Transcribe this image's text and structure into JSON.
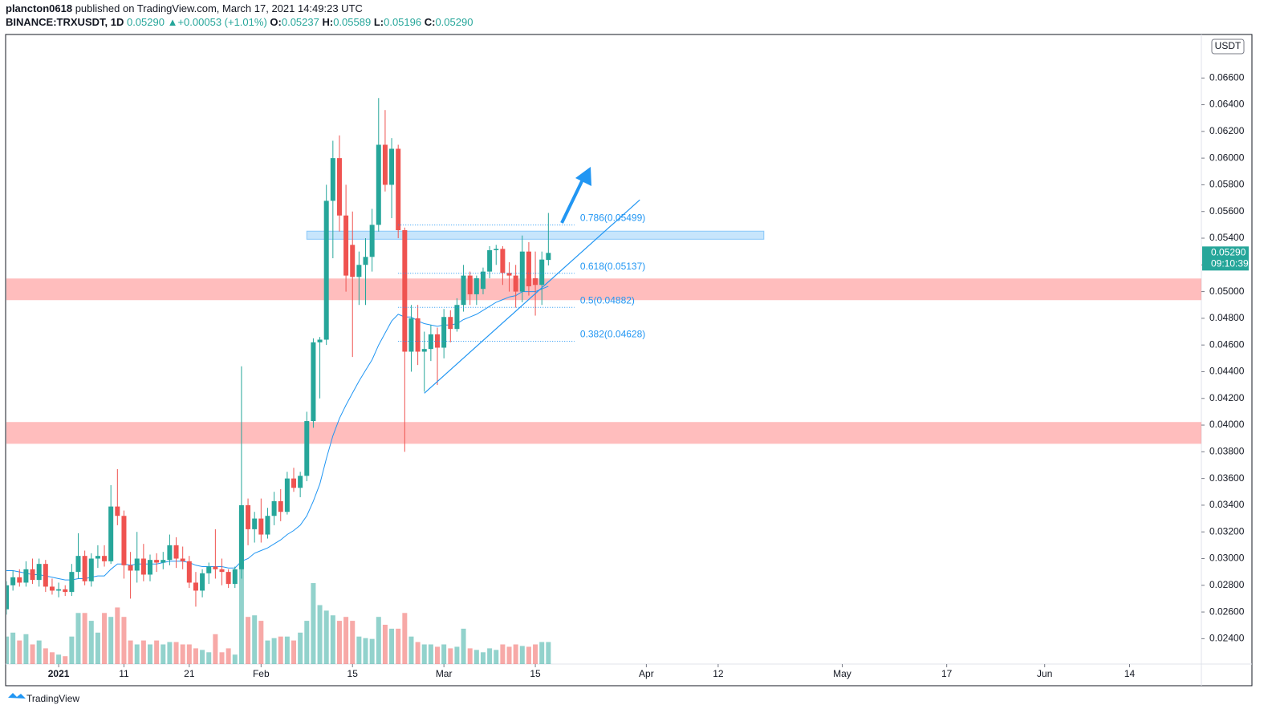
{
  "header": {
    "author": "plancton0618",
    "published": " published on TradingView.com, March 17, 2021 14:49:23 UTC",
    "symbol": "BINANCE:TRXUSDT, 1D",
    "price": "0.05290",
    "change": "▲+0.00053 (+1.01%)",
    "o_label": "O:",
    "o": "0.05237",
    "h_label": "H:",
    "h": "0.05589",
    "l_label": "L:",
    "l": "0.05196",
    "c_label": "C:",
    "c": "0.05290",
    "currency": "USDT",
    "price_tag": "0.05290",
    "countdown": "09:10:39",
    "brand": "TradingView"
  },
  "chart_data": {
    "type": "candlestick",
    "x": [
      "2020-12-24",
      "2020-12-25",
      "2020-12-26",
      "2020-12-27",
      "2020-12-28",
      "2020-12-29",
      "2020-12-30",
      "2020-12-31",
      "2021-01-01",
      "2021-01-02",
      "2021-01-03",
      "2021-01-04",
      "2021-01-05",
      "2021-01-06",
      "2021-01-07",
      "2021-01-08",
      "2021-01-09",
      "2021-01-10",
      "2021-01-11",
      "2021-01-12",
      "2021-01-13",
      "2021-01-14",
      "2021-01-15",
      "2021-01-16",
      "2021-01-17",
      "2021-01-18",
      "2021-01-19",
      "2021-01-20",
      "2021-01-21",
      "2021-01-22",
      "2021-01-23",
      "2021-01-24",
      "2021-01-25",
      "2021-01-26",
      "2021-01-27",
      "2021-01-28",
      "2021-01-29",
      "2021-01-30",
      "2021-01-31",
      "2021-02-01",
      "2021-02-02",
      "2021-02-03",
      "2021-02-04",
      "2021-02-05",
      "2021-02-06",
      "2021-02-07",
      "2021-02-08",
      "2021-02-09",
      "2021-02-10",
      "2021-02-11",
      "2021-02-12",
      "2021-02-13",
      "2021-02-14",
      "2021-02-15",
      "2021-02-16",
      "2021-02-17",
      "2021-02-18",
      "2021-02-19",
      "2021-02-20",
      "2021-02-21",
      "2021-02-22",
      "2021-02-23",
      "2021-02-24",
      "2021-02-25",
      "2021-02-26",
      "2021-02-27",
      "2021-02-28",
      "2021-03-01",
      "2021-03-02",
      "2021-03-03",
      "2021-03-04",
      "2021-03-05",
      "2021-03-06",
      "2021-03-07",
      "2021-03-08",
      "2021-03-09",
      "2021-03-10",
      "2021-03-11",
      "2021-03-12",
      "2021-03-13",
      "2021-03-14",
      "2021-03-15",
      "2021-03-16",
      "2021-03-17"
    ],
    "open": [
      0.0262,
      0.028,
      0.0286,
      0.0282,
      0.0292,
      0.0284,
      0.0296,
      0.0279,
      0.0276,
      0.0277,
      0.0275,
      0.029,
      0.0302,
      0.0283,
      0.03,
      0.0302,
      0.0298,
      0.0339,
      0.0332,
      0.0295,
      0.0291,
      0.03,
      0.0288,
      0.0299,
      0.0297,
      0.0299,
      0.031,
      0.03,
      0.0298,
      0.0282,
      0.0276,
      0.0289,
      0.0294,
      0.0292,
      0.029,
      0.0281,
      0.0292,
      0.034,
      0.0322,
      0.033,
      0.0318,
      0.0332,
      0.0343,
      0.0335,
      0.036,
      0.0353,
      0.0362,
      0.0403,
      0.0462,
      0.0464,
      0.0568,
      0.06,
      0.0557,
      0.0535,
      0.0511,
      0.052,
      0.0526,
      0.055,
      0.061,
      0.058,
      0.0607,
      0.0546,
      0.0455,
      0.048,
      0.0455,
      0.0457,
      0.0468,
      0.0458,
      0.0481,
      0.0472,
      0.049,
      0.0512,
      0.0498,
      0.0502,
      0.0515,
      0.0531,
      0.0532,
      0.0514,
      0.0512,
      0.05,
      0.053,
      0.051,
      0.0505,
      0.05237
    ],
    "high": [
      0.0283,
      0.0291,
      0.0292,
      0.0298,
      0.03,
      0.03,
      0.0299,
      0.0285,
      0.0282,
      0.028,
      0.0296,
      0.0319,
      0.0306,
      0.0304,
      0.031,
      0.031,
      0.0355,
      0.0367,
      0.0336,
      0.0305,
      0.032,
      0.0311,
      0.0303,
      0.0304,
      0.0305,
      0.0318,
      0.0316,
      0.0309,
      0.0302,
      0.029,
      0.0292,
      0.0297,
      0.0322,
      0.03,
      0.0292,
      0.0294,
      0.0444,
      0.0345,
      0.0335,
      0.0345,
      0.0338,
      0.035,
      0.0352,
      0.0365,
      0.0368,
      0.0365,
      0.041,
      0.0465,
      0.0466,
      0.058,
      0.0613,
      0.0617,
      0.058,
      0.056,
      0.053,
      0.054,
      0.0562,
      0.0645,
      0.0636,
      0.0615,
      0.061,
      0.0548,
      0.049,
      0.049,
      0.047,
      0.0475,
      0.0473,
      0.0487,
      0.0486,
      0.0495,
      0.052,
      0.0515,
      0.0512,
      0.0518,
      0.0534,
      0.0535,
      0.0534,
      0.0522,
      0.052,
      0.0542,
      0.0537,
      0.053,
      0.053,
      0.05589
    ],
    "low": [
      0.0258,
      0.0276,
      0.0279,
      0.0279,
      0.0281,
      0.0279,
      0.0275,
      0.0273,
      0.0271,
      0.0272,
      0.0272,
      0.0285,
      0.028,
      0.0279,
      0.0293,
      0.0294,
      0.0296,
      0.0325,
      0.0285,
      0.027,
      0.0282,
      0.0283,
      0.0283,
      0.029,
      0.0292,
      0.0295,
      0.0293,
      0.0292,
      0.0278,
      0.0264,
      0.0271,
      0.0281,
      0.0285,
      0.028,
      0.0278,
      0.0278,
      0.0285,
      0.031,
      0.0312,
      0.0312,
      0.0315,
      0.0325,
      0.0328,
      0.0333,
      0.035,
      0.0346,
      0.0358,
      0.0398,
      0.042,
      0.046,
      0.0525,
      0.0545,
      0.05,
      0.0451,
      0.049,
      0.049,
      0.0515,
      0.0545,
      0.0575,
      0.0555,
      0.054,
      0.038,
      0.044,
      0.0445,
      0.0425,
      0.0448,
      0.043,
      0.045,
      0.0462,
      0.047,
      0.0485,
      0.049,
      0.049,
      0.0498,
      0.051,
      0.052,
      0.0505,
      0.05,
      0.0488,
      0.0492,
      0.0497,
      0.0482,
      0.049,
      0.05196
    ],
    "close": [
      0.028,
      0.0286,
      0.0282,
      0.0292,
      0.0284,
      0.0296,
      0.0279,
      0.0276,
      0.0277,
      0.0275,
      0.029,
      0.0302,
      0.0283,
      0.03,
      0.0302,
      0.0298,
      0.0339,
      0.0332,
      0.0295,
      0.0291,
      0.03,
      0.0288,
      0.0299,
      0.0297,
      0.0299,
      0.031,
      0.03,
      0.0298,
      0.0282,
      0.0276,
      0.0289,
      0.0294,
      0.0292,
      0.029,
      0.0281,
      0.0292,
      0.034,
      0.0322,
      0.033,
      0.0318,
      0.0332,
      0.0343,
      0.0335,
      0.036,
      0.0353,
      0.0362,
      0.0403,
      0.0462,
      0.0464,
      0.0568,
      0.06,
      0.0557,
      0.0512,
      0.0511,
      0.052,
      0.0526,
      0.055,
      0.061,
      0.058,
      0.0607,
      0.0546,
      0.0455,
      0.048,
      0.0455,
      0.0457,
      0.0468,
      0.0458,
      0.0481,
      0.0472,
      0.049,
      0.0512,
      0.0498,
      0.051,
      0.0515,
      0.0531,
      0.0532,
      0.0514,
      0.0512,
      0.05,
      0.053,
      0.0504,
      0.0505,
      0.0524,
      0.0529
    ],
    "volume": [
      35,
      40,
      30,
      38,
      25,
      30,
      20,
      15,
      12,
      10,
      35,
      65,
      65,
      55,
      40,
      65,
      60,
      72,
      60,
      30,
      25,
      30,
      25,
      30,
      25,
      28,
      28,
      25,
      25,
      20,
      18,
      15,
      38,
      15,
      20,
      12,
      195,
      60,
      62,
      55,
      30,
      33,
      35,
      35,
      30,
      40,
      55,
      103,
      75,
      68,
      62,
      55,
      60,
      55,
      35,
      33,
      32,
      60,
      50,
      45,
      45,
      65,
      35,
      28,
      25,
      25,
      22,
      25,
      20,
      22,
      45,
      20,
      18,
      15,
      20,
      18,
      25,
      22,
      25,
      23,
      22,
      25,
      28,
      28
    ],
    "vlim": [
      0,
      800
    ],
    "ema": [
      0.0291,
      0.0291,
      0.029,
      0.0289,
      0.0288,
      0.0288,
      0.0287,
      0.0286,
      0.0285,
      0.0284,
      0.0284,
      0.0285,
      0.0285,
      0.0286,
      0.0287,
      0.0287,
      0.0292,
      0.0296,
      0.0296,
      0.0295,
      0.0296,
      0.0296,
      0.0296,
      0.0296,
      0.0297,
      0.0298,
      0.0298,
      0.0298,
      0.0297,
      0.0295,
      0.0294,
      0.0294,
      0.0294,
      0.0294,
      0.0293,
      0.0293,
      0.0298,
      0.03,
      0.0304,
      0.0306,
      0.0308,
      0.0311,
      0.0314,
      0.0318,
      0.0321,
      0.0325,
      0.0332,
      0.0343,
      0.0356,
      0.0375,
      0.0392,
      0.0405,
      0.0415,
      0.0424,
      0.0433,
      0.0441,
      0.0449,
      0.046,
      0.0469,
      0.0478,
      0.0483,
      0.0481,
      0.0481,
      0.0478,
      0.0476,
      0.0475,
      0.0474,
      0.0475,
      0.0475,
      0.0476,
      0.0479,
      0.0481,
      0.0483,
      0.0486,
      0.0489,
      0.0492,
      0.0494,
      0.0496,
      0.0497,
      0.05,
      0.05,
      0.05,
      0.0502,
      0.0504
    ],
    "up_color": "#26a69a",
    "down_color": "#ef5350",
    "ema_color": "#2196f3",
    "xlim": [
      "2020-12-24",
      "2021-06-25"
    ],
    "xticks": [
      {
        "value": "2021-01-01",
        "label": "2021"
      },
      {
        "value": "2021-01-11",
        "label": "11"
      },
      {
        "value": "2021-01-21",
        "label": "21"
      },
      {
        "value": "2021-02-01",
        "label": "Feb"
      },
      {
        "value": "2021-02-15",
        "label": "15"
      },
      {
        "value": "2021-03-01",
        "label": "Mar"
      },
      {
        "value": "2021-03-15",
        "label": "15"
      },
      {
        "value": "2021-04-01",
        "label": "Apr"
      },
      {
        "value": "2021-04-12",
        "label": "12"
      },
      {
        "value": "2021-05-01",
        "label": "May"
      },
      {
        "value": "2021-05-17",
        "label": "17"
      },
      {
        "value": "2021-06-01",
        "label": "Jun"
      },
      {
        "value": "2021-06-14",
        "label": "14"
      }
    ],
    "ylim": [
      0.0221,
      0.0692
    ],
    "yticks": [
      {
        "value": 0.024,
        "label": "0.02400"
      },
      {
        "value": 0.026,
        "label": "0.02600"
      },
      {
        "value": 0.028,
        "label": "0.02800"
      },
      {
        "value": 0.03,
        "label": "0.03000"
      },
      {
        "value": 0.032,
        "label": "0.03200"
      },
      {
        "value": 0.034,
        "label": "0.03400"
      },
      {
        "value": 0.036,
        "label": "0.03600"
      },
      {
        "value": 0.038,
        "label": "0.03800"
      },
      {
        "value": 0.04,
        "label": "0.04000"
      },
      {
        "value": 0.042,
        "label": "0.04200"
      },
      {
        "value": 0.044,
        "label": "0.04400"
      },
      {
        "value": 0.046,
        "label": "0.04600"
      },
      {
        "value": 0.048,
        "label": "0.04800"
      },
      {
        "value": 0.05,
        "label": "0.05000"
      },
      {
        "value": 0.052,
        "label": "0.05200"
      },
      {
        "value": 0.054,
        "label": "0.05400"
      },
      {
        "value": 0.056,
        "label": "0.05600"
      },
      {
        "value": 0.058,
        "label": "0.05800"
      },
      {
        "value": 0.06,
        "label": "0.06000"
      },
      {
        "value": 0.062,
        "label": "0.06200"
      },
      {
        "value": 0.064,
        "label": "0.06400"
      },
      {
        "value": 0.066,
        "label": "0.06600"
      }
    ],
    "grid": false,
    "red_zones": [
      [
        0.04936,
        0.05098
      ],
      [
        0.0386,
        0.04023
      ]
    ],
    "blue_zone": {
      "x": [
        "2021-02-08",
        "2021-04-19"
      ],
      "y": [
        0.05392,
        0.05453
      ]
    },
    "fib_x": [
      "2021-02-22",
      "2021-03-21"
    ],
    "fib_levels": [
      {
        "value": 0.05499,
        "label": "0.786(0.05499)"
      },
      {
        "value": 0.05137,
        "label": "0.618(0.05137)"
      },
      {
        "value": 0.04882,
        "label": "0.5(0.04882)"
      },
      {
        "value": 0.04628,
        "label": "0.382(0.04628)"
      }
    ],
    "trendline": {
      "x": [
        "2021-02-26",
        "2021-03-31"
      ],
      "y": [
        0.04239,
        0.05687
      ]
    }
  }
}
